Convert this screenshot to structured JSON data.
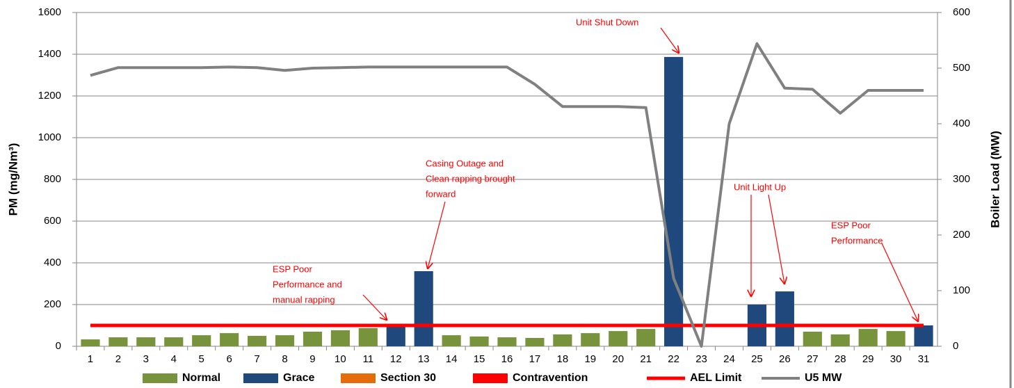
{
  "chart_data": {
    "type": "bar",
    "categories": [
      "1",
      "2",
      "3",
      "4",
      "5",
      "6",
      "7",
      "8",
      "9",
      "10",
      "11",
      "12",
      "13",
      "14",
      "15",
      "16",
      "17",
      "18",
      "19",
      "20",
      "21",
      "22",
      "23",
      "24",
      "25",
      "26",
      "27",
      "28",
      "29",
      "30",
      "31"
    ],
    "y_label": "PM (mg/Nm³)",
    "y2_label": "Boiler Load (MW)",
    "ylim": [
      0,
      1600
    ],
    "yticks": [
      0,
      200,
      400,
      600,
      800,
      1000,
      1200,
      1400,
      1600
    ],
    "y2lim": [
      0,
      600
    ],
    "y2ticks": [
      0,
      100,
      200,
      300,
      400,
      500,
      600
    ],
    "grid": true,
    "legend": "bottom",
    "series": [
      {
        "name": "Normal",
        "type": "bar",
        "color": "#77933c",
        "values": [
          33,
          43,
          43,
          43,
          53,
          63,
          50,
          53,
          70,
          77,
          87,
          null,
          null,
          53,
          47,
          43,
          40,
          57,
          63,
          73,
          83,
          null,
          null,
          null,
          null,
          null,
          70,
          57,
          83,
          73,
          null
        ]
      },
      {
        "name": "Grace",
        "type": "bar",
        "color": "#1f497d",
        "values": [
          null,
          null,
          null,
          null,
          null,
          null,
          null,
          null,
          null,
          null,
          null,
          100,
          360,
          null,
          null,
          null,
          null,
          null,
          null,
          null,
          null,
          1387,
          null,
          null,
          200,
          263,
          null,
          null,
          null,
          null,
          100
        ]
      },
      {
        "name": "Section 30",
        "type": "bar",
        "color": "#e46c0a",
        "values": [
          null,
          null,
          null,
          null,
          null,
          null,
          null,
          null,
          null,
          null,
          null,
          null,
          null,
          null,
          null,
          null,
          null,
          null,
          null,
          null,
          null,
          null,
          null,
          null,
          null,
          null,
          null,
          null,
          null,
          null,
          null
        ]
      },
      {
        "name": "Contravention",
        "type": "bar",
        "color": "#ff0000",
        "values": [
          null,
          null,
          null,
          null,
          null,
          null,
          null,
          null,
          null,
          null,
          null,
          null,
          null,
          null,
          null,
          null,
          null,
          null,
          null,
          null,
          null,
          null,
          null,
          null,
          null,
          null,
          null,
          null,
          null,
          null,
          null
        ]
      },
      {
        "name": "AEL Limit",
        "type": "line",
        "color": "#ff0000",
        "values": [
          100,
          100,
          100,
          100,
          100,
          100,
          100,
          100,
          100,
          100,
          100,
          100,
          100,
          100,
          100,
          100,
          100,
          100,
          100,
          100,
          100,
          100,
          100,
          100,
          100,
          100,
          100,
          100,
          100,
          100,
          100
        ]
      },
      {
        "name": "U5 MW",
        "type": "line",
        "axis": "y2",
        "color": "#808080",
        "values": [
          487,
          501,
          501,
          501,
          501,
          502,
          501,
          496,
          500,
          501,
          502,
          502,
          502,
          502,
          502,
          502,
          471,
          431,
          431,
          431,
          429,
          122,
          0,
          400,
          544,
          464,
          462,
          419,
          460,
          460,
          460
        ]
      }
    ],
    "annotations": [
      {
        "text": [
          "Unit Shut Down"
        ]
      },
      {
        "text": [
          "Casing Outage and",
          "Clean rapping brought",
          "forward"
        ]
      },
      {
        "text": [
          "ESP Poor",
          "Performance and",
          "manual rapping"
        ]
      },
      {
        "text": [
          "Unit Light Up"
        ]
      },
      {
        "text": [
          "ESP Poor",
          "Performance"
        ]
      }
    ]
  }
}
